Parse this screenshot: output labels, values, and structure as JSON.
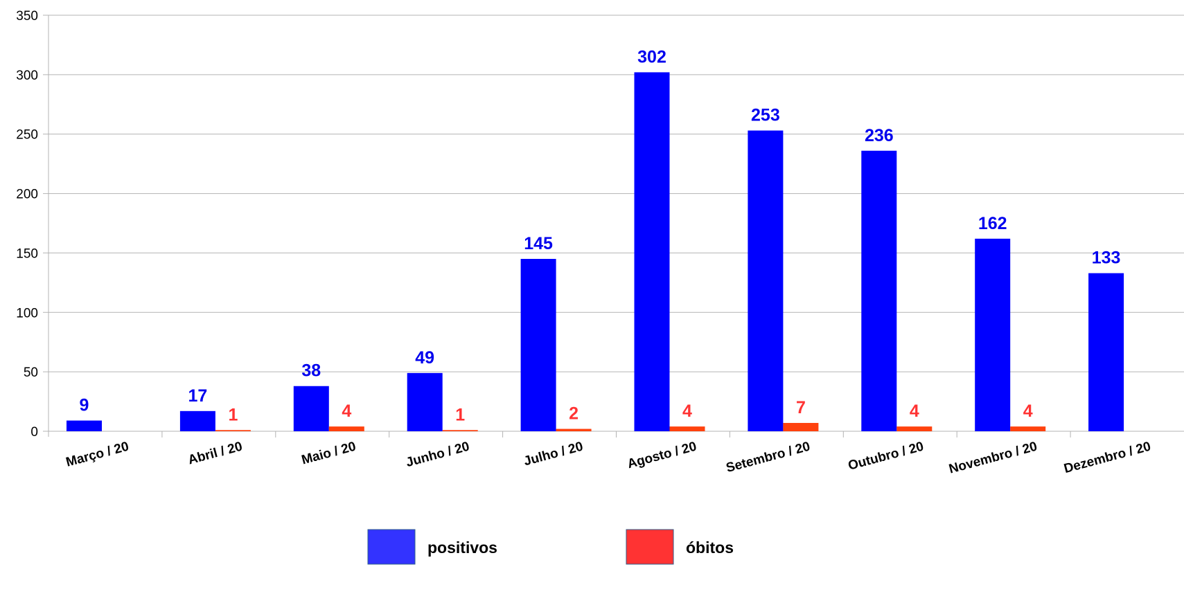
{
  "chart_data": {
    "type": "bar",
    "categories": [
      "Março / 20",
      "Abril / 20",
      "Maio / 20",
      "Junho / 20",
      "Julho / 20",
      "Agosto / 20",
      "Setembro / 20",
      "Outubro / 20",
      "Novembro / 20",
      "Dezembro / 20"
    ],
    "series": [
      {
        "name": "positivos",
        "color": "#0000ff",
        "label_color": "#0000ee",
        "legend_color": "#3333ff",
        "values": [
          9,
          17,
          38,
          49,
          145,
          302,
          253,
          236,
          162,
          133
        ],
        "labels": [
          "9",
          "17",
          "38",
          "49",
          "145",
          "302",
          "253",
          "236",
          "162",
          "133"
        ]
      },
      {
        "name": "óbitos",
        "color": "#ff420e",
        "label_color": "#ff3333",
        "legend_color": "#ff3333",
        "values": [
          null,
          1,
          4,
          1,
          2,
          4,
          7,
          4,
          4,
          null
        ],
        "labels": [
          "",
          "1",
          "4",
          "1",
          "2",
          "4",
          "7",
          "4",
          "4",
          ""
        ]
      }
    ],
    "title": "",
    "xlabel": "",
    "ylabel": "",
    "ylim": [
      0,
      350
    ],
    "yticks": [
      0,
      50,
      100,
      150,
      200,
      250,
      300,
      350
    ],
    "ytick_labels": [
      "0",
      "50",
      "100",
      "150",
      "200",
      "250",
      "300",
      "350"
    ],
    "grid": true,
    "legend_position": "bottom"
  }
}
